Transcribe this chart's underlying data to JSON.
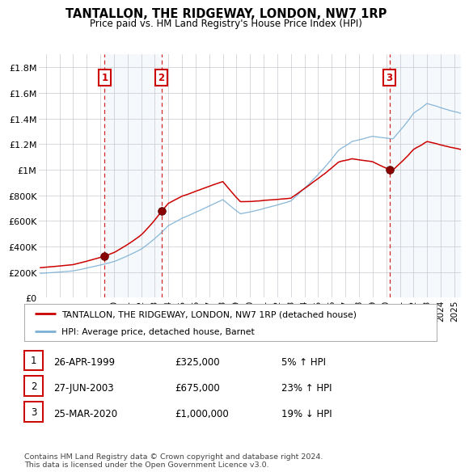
{
  "title": "TANTALLON, THE RIDGEWAY, LONDON, NW7 1RP",
  "subtitle": "Price paid vs. HM Land Registry's House Price Index (HPI)",
  "background_color": "#ffffff",
  "plot_bg_color": "#ffffff",
  "grid_color": "#c8c8d0",
  "sale_dates_decimal": [
    1999.32,
    2003.49,
    2020.23
  ],
  "sale_prices": [
    325000,
    675000,
    1000000
  ],
  "sale_labels": [
    "1",
    "2",
    "3"
  ],
  "hpi_color": "#7bafd4",
  "price_color": "#cc0000",
  "shade_color": "#d8e8f5",
  "dashed_color": "#cc0000",
  "ylim": [
    0,
    1900000
  ],
  "xlim_start": 1994.5,
  "xlim_end": 2025.5,
  "yticks": [
    0,
    200000,
    400000,
    600000,
    800000,
    1000000,
    1200000,
    1400000,
    1600000,
    1800000
  ],
  "ytick_labels": [
    "£0",
    "£200K",
    "£400K",
    "£600K",
    "£800K",
    "£1M",
    "£1.2M",
    "£1.4M",
    "£1.6M",
    "£1.8M"
  ],
  "xtick_years": [
    1995,
    1996,
    1997,
    1998,
    1999,
    2000,
    2001,
    2002,
    2003,
    2004,
    2005,
    2006,
    2007,
    2008,
    2009,
    2010,
    2011,
    2012,
    2013,
    2014,
    2015,
    2016,
    2017,
    2018,
    2019,
    2020,
    2021,
    2022,
    2023,
    2024,
    2025
  ],
  "legend_line1": "TANTALLON, THE RIDGEWAY, LONDON, NW7 1RP (detached house)",
  "legend_line2": "HPI: Average price, detached house, Barnet",
  "table_rows": [
    [
      "1",
      "26-APR-1999",
      "£325,000",
      "5% ↑ HPI"
    ],
    [
      "2",
      "27-JUN-2003",
      "£675,000",
      "23% ↑ HPI"
    ],
    [
      "3",
      "25-MAR-2020",
      "£1,000,000",
      "19% ↓ HPI"
    ]
  ],
  "footer_text": "Contains HM Land Registry data © Crown copyright and database right 2024.\nThis data is licensed under the Open Government Licence v3.0."
}
